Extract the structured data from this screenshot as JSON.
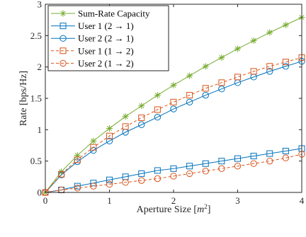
{
  "chart_data": {
    "type": "line",
    "xlabel": "Aperture Size [m²]",
    "xlabel_main": "Aperture Size [",
    "xlabel_var": "m",
    "xlabel_sup": "2",
    "xlabel_close": "]",
    "ylabel": "Rate [bps/Hz]",
    "xlim": [
      0,
      4
    ],
    "ylim": [
      0,
      3
    ],
    "xticks": [
      0,
      1,
      2,
      3,
      4
    ],
    "yticks": [
      0,
      0.5,
      1,
      1.5,
      2,
      2.5,
      3
    ],
    "xtick_labels": [
      "0",
      "1",
      "2",
      "3",
      "4"
    ],
    "ytick_labels": [
      "0",
      "0.5",
      "1",
      "1.5",
      "2",
      "2.5",
      "3"
    ],
    "grid": false,
    "legend_position": "top-left",
    "x": [
      0,
      0.25,
      0.5,
      0.75,
      1.0,
      1.25,
      1.5,
      1.75,
      2.0,
      2.25,
      2.5,
      2.75,
      3.0,
      3.25,
      3.5,
      3.75,
      4.0
    ],
    "series": [
      {
        "name": "Sum-Rate Capacity",
        "color": "#77AC30",
        "marker": "asterisk",
        "dash": "solid",
        "values": [
          0,
          0.33,
          0.59,
          0.82,
          1.02,
          1.21,
          1.38,
          1.55,
          1.71,
          1.86,
          2.01,
          2.15,
          2.29,
          2.42,
          2.55,
          2.67,
          2.79
        ]
      },
      {
        "name": "User 1 (2 → 1)",
        "color": "#0072BD",
        "marker": "square",
        "dash": "solid",
        "values": [
          0,
          0.04,
          0.1,
          0.15,
          0.2,
          0.25,
          0.3,
          0.35,
          0.38,
          0.42,
          0.46,
          0.5,
          0.54,
          0.58,
          0.62,
          0.66,
          0.7
        ]
      },
      {
        "name": "User 2 (2 → 1)",
        "color": "#0072BD",
        "marker": "circle",
        "dash": "solid",
        "values": [
          0,
          0.28,
          0.49,
          0.67,
          0.82,
          0.96,
          1.08,
          1.2,
          1.33,
          1.44,
          1.55,
          1.65,
          1.75,
          1.84,
          1.93,
          2.01,
          2.09
        ]
      },
      {
        "name": "User 1 (1 → 2)",
        "color": "#D95319",
        "marker": "square",
        "dash": "dashed",
        "values": [
          0,
          0.29,
          0.52,
          0.72,
          0.9,
          1.05,
          1.19,
          1.32,
          1.44,
          1.55,
          1.66,
          1.75,
          1.84,
          1.93,
          2.01,
          2.08,
          2.15
        ]
      },
      {
        "name": "User 2 (1 → 2)",
        "color": "#D95319",
        "marker": "circle",
        "dash": "dashed",
        "values": [
          0,
          0.04,
          0.07,
          0.1,
          0.13,
          0.16,
          0.19,
          0.22,
          0.26,
          0.3,
          0.34,
          0.38,
          0.42,
          0.46,
          0.5,
          0.55,
          0.61
        ]
      }
    ]
  }
}
